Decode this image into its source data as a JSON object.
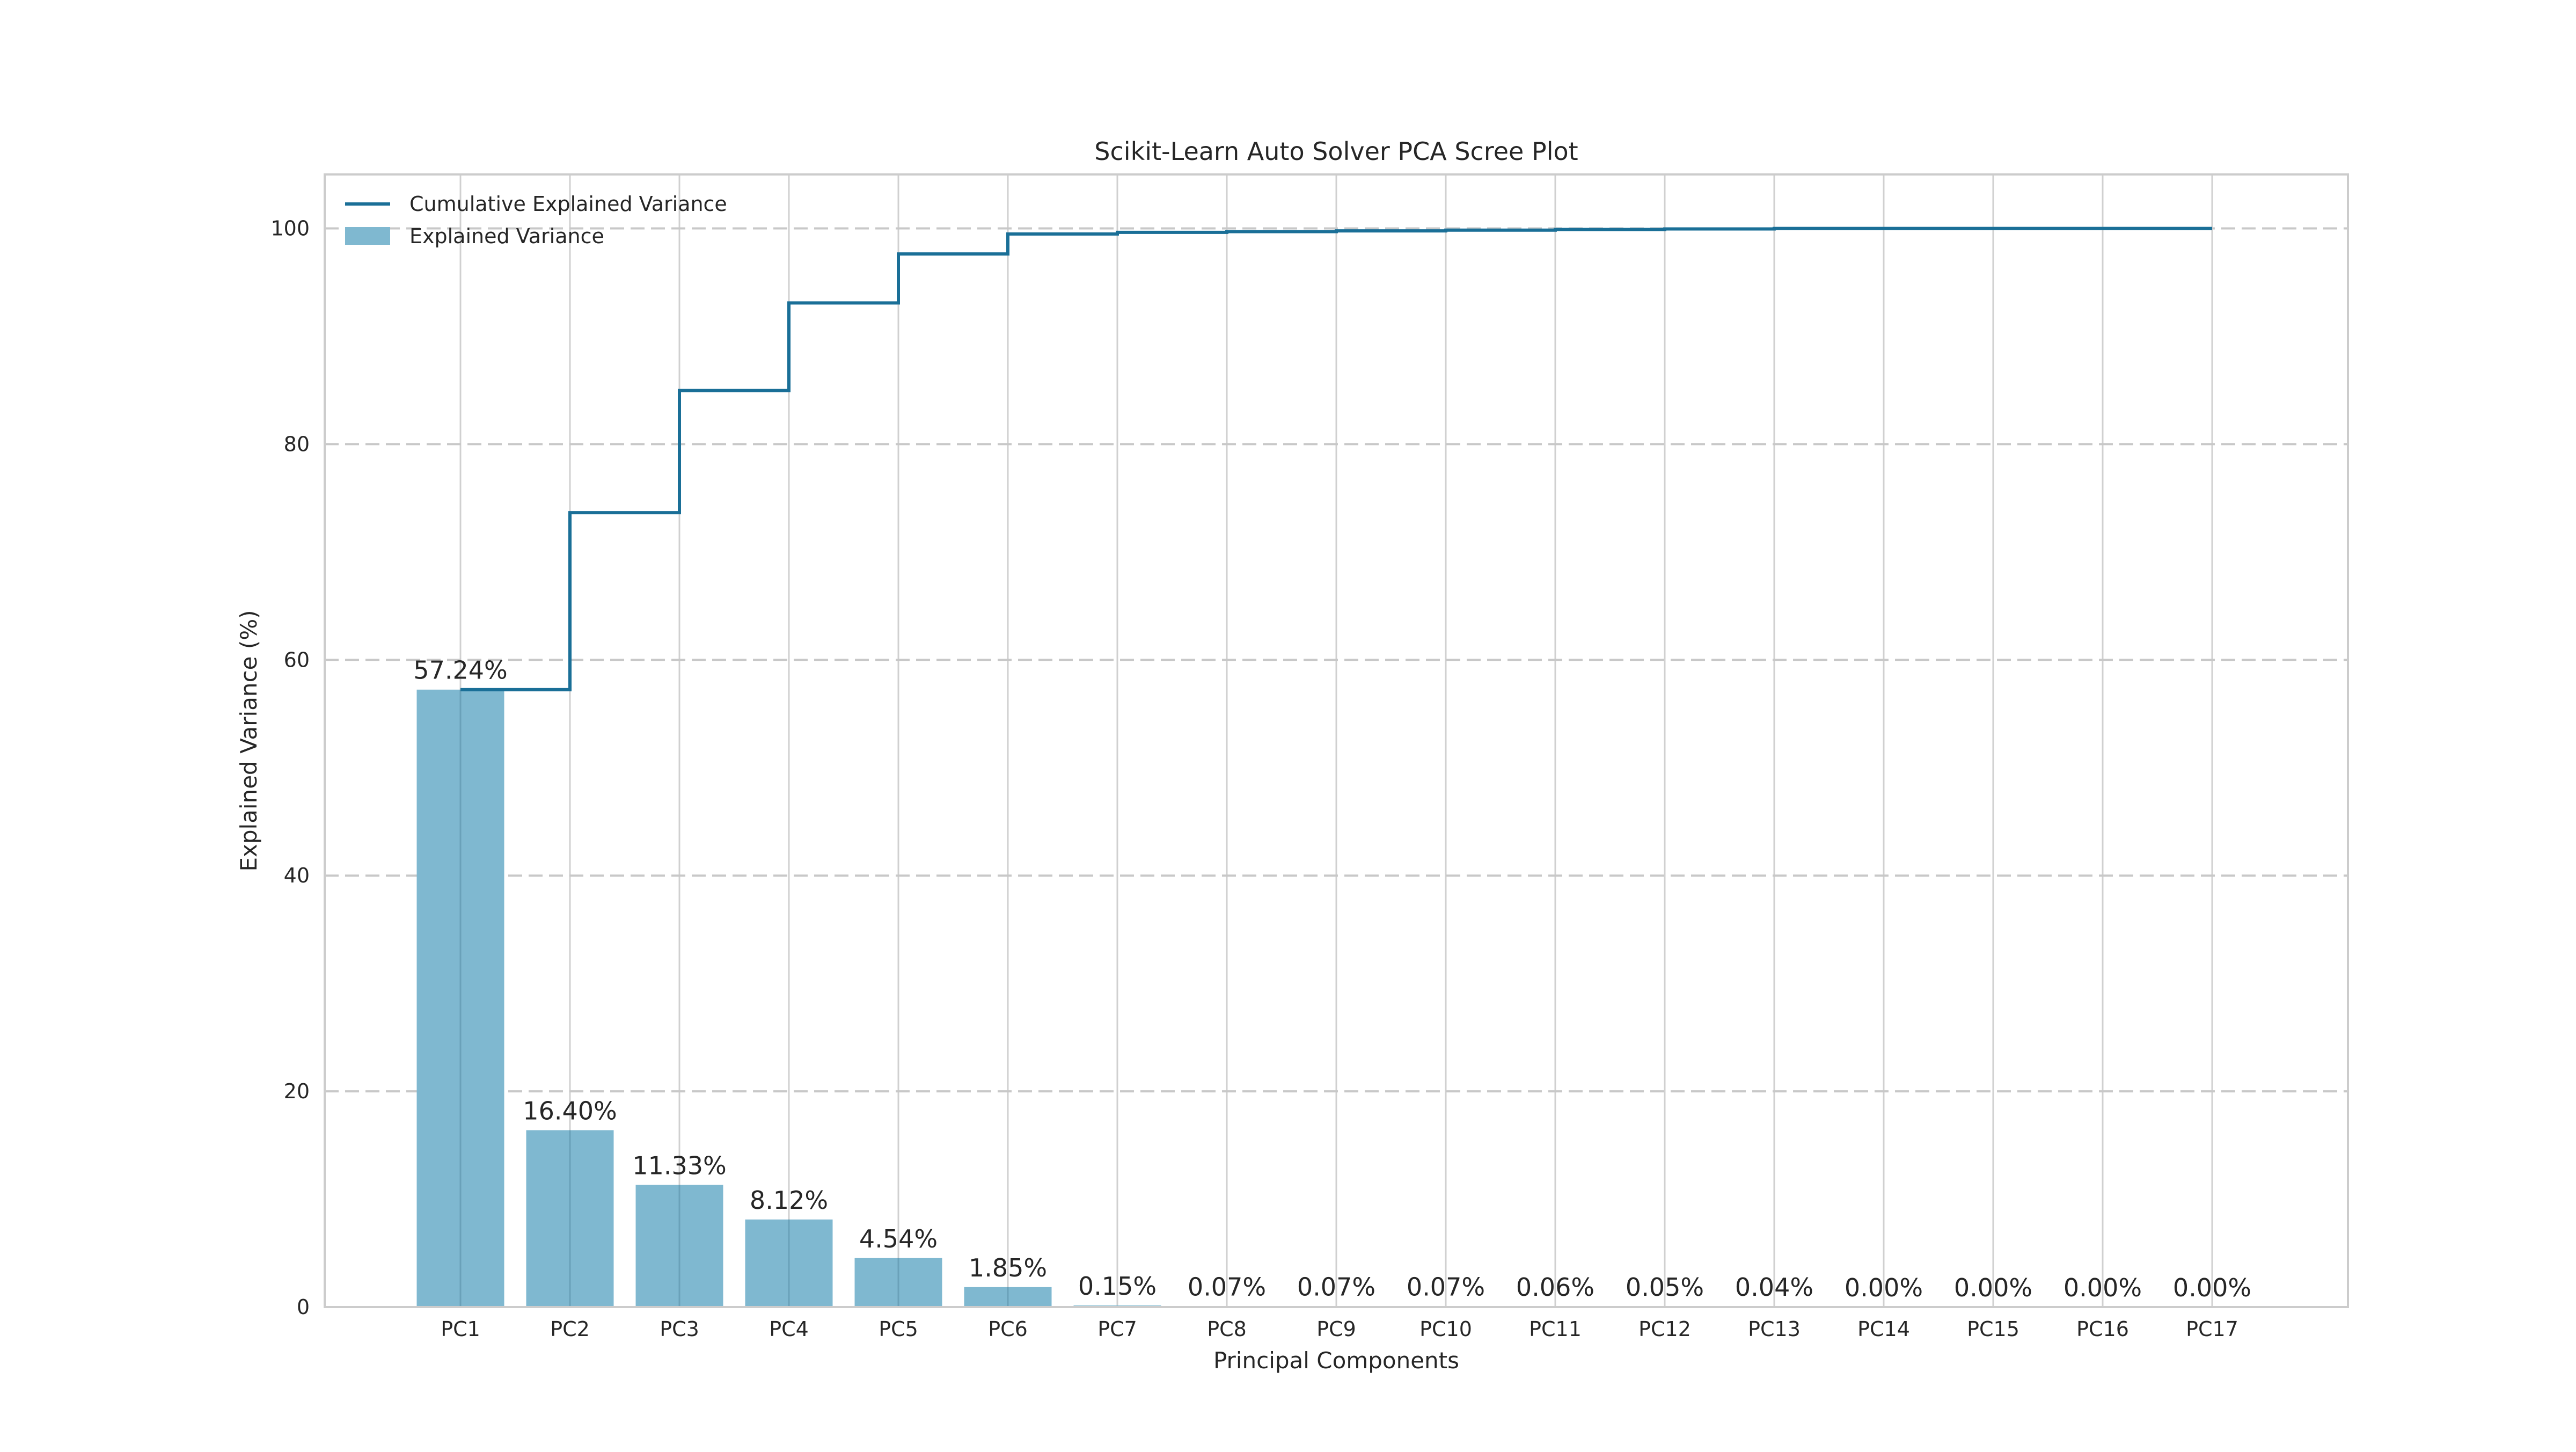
{
  "chart_data": {
    "type": "bar",
    "title": "Scikit-Learn Auto Solver PCA Scree Plot",
    "xlabel": "Principal Components",
    "ylabel": "Explained Variance (%)",
    "categories": [
      "PC1",
      "PC2",
      "PC3",
      "PC4",
      "PC5",
      "PC6",
      "PC7",
      "PC8",
      "PC9",
      "PC10",
      "PC11",
      "PC12",
      "PC13",
      "PC14",
      "PC15",
      "PC16",
      "PC17"
    ],
    "series": [
      {
        "name": "Explained Variance",
        "type": "bar",
        "color": "#7fb8d0",
        "values": [
          57.24,
          16.4,
          11.33,
          8.12,
          4.54,
          1.85,
          0.15,
          0.07,
          0.07,
          0.07,
          0.06,
          0.05,
          0.04,
          0.0,
          0.0,
          0.0,
          0.0
        ]
      },
      {
        "name": "Cumulative Explained Variance",
        "type": "step",
        "color": "#1a6f97",
        "values": [
          57.24,
          73.64,
          84.97,
          93.09,
          97.63,
          99.48,
          99.63,
          99.7,
          99.77,
          99.84,
          99.9,
          99.95,
          99.99,
          99.99,
          99.99,
          99.99,
          99.99
        ]
      }
    ],
    "data_labels": [
      "57.24%",
      "16.40%",
      "11.33%",
      "8.12%",
      "4.54%",
      "1.85%",
      "0.15%",
      "0.07%",
      "0.07%",
      "0.07%",
      "0.06%",
      "0.05%",
      "0.04%",
      "0.00%",
      "0.00%",
      "0.00%",
      "0.00%"
    ],
    "yticks": [
      0,
      20,
      40,
      60,
      80,
      100
    ],
    "ylim": [
      0,
      105
    ],
    "grid": true,
    "legend_position": "top-left"
  }
}
